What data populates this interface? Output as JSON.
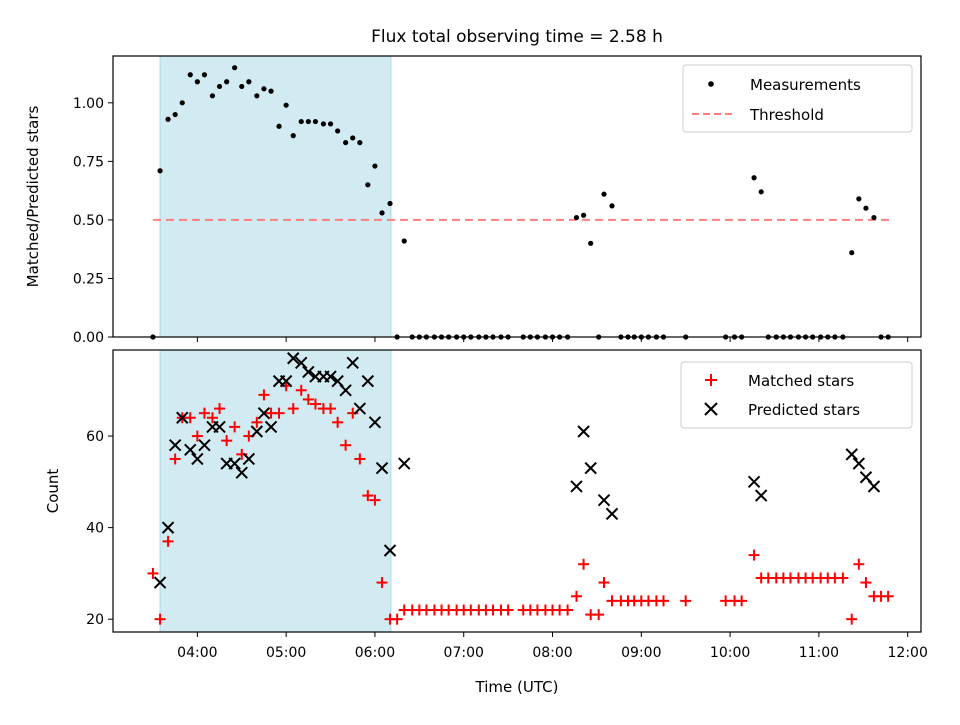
{
  "chart_data": {
    "title": "Flux total observing time = 2.58 h",
    "xlabel": "Time (UTC)",
    "xlim_hours": [
      3.05,
      12.15
    ],
    "x_tick_labels": [
      "04:00",
      "05:00",
      "06:00",
      "07:00",
      "08:00",
      "09:00",
      "10:00",
      "11:00",
      "12:00"
    ],
    "shaded_span_hours": [
      3.58,
      6.18
    ],
    "colors": {
      "span": "#add8e6",
      "measurements": "#000000",
      "threshold": "#ff7f7f",
      "matched": "#ff0000",
      "predicted": "#000000"
    },
    "panels": [
      {
        "type": "scatter",
        "ylabel": "Matched/Predicted stars",
        "ylim": [
          0,
          1.2
        ],
        "y_ticks": [
          0,
          0.25,
          0.5,
          0.75,
          1.0
        ],
        "y_tick_labels": [
          "0.00",
          "0.25",
          "0.50",
          "0.75",
          "1.00"
        ],
        "legend_position": "top-right",
        "legend": [
          "Measurements",
          "Threshold"
        ],
        "threshold": {
          "value": 0.5,
          "x_range": [
            3.5,
            11.8
          ]
        },
        "series": [
          {
            "name": "Measurements",
            "points": [
              [
                3.5,
                0.0
              ],
              [
                3.58,
                0.71
              ],
              [
                3.67,
                0.93
              ],
              [
                3.75,
                0.95
              ],
              [
                3.83,
                1.0
              ],
              [
                3.92,
                1.12
              ],
              [
                4.0,
                1.09
              ],
              [
                4.08,
                1.12
              ],
              [
                4.17,
                1.03
              ],
              [
                4.25,
                1.07
              ],
              [
                4.33,
                1.09
              ],
              [
                4.42,
                1.15
              ],
              [
                4.5,
                1.07
              ],
              [
                4.58,
                1.09
              ],
              [
                4.67,
                1.03
              ],
              [
                4.75,
                1.06
              ],
              [
                4.83,
                1.05
              ],
              [
                4.92,
                0.9
              ],
              [
                5.0,
                0.99
              ],
              [
                5.08,
                0.86
              ],
              [
                5.17,
                0.92
              ],
              [
                5.25,
                0.92
              ],
              [
                5.33,
                0.92
              ],
              [
                5.42,
                0.91
              ],
              [
                5.5,
                0.91
              ],
              [
                5.58,
                0.88
              ],
              [
                5.67,
                0.83
              ],
              [
                5.75,
                0.85
              ],
              [
                5.83,
                0.83
              ],
              [
                5.92,
                0.65
              ],
              [
                6.0,
                0.73
              ],
              [
                6.08,
                0.53
              ],
              [
                6.17,
                0.57
              ],
              [
                6.25,
                0.0
              ],
              [
                6.33,
                0.41
              ],
              [
                6.42,
                0.0
              ],
              [
                6.5,
                0.0
              ],
              [
                6.58,
                0.0
              ],
              [
                6.67,
                0.0
              ],
              [
                6.75,
                0.0
              ],
              [
                6.83,
                0.0
              ],
              [
                6.92,
                0.0
              ],
              [
                7.0,
                0.0
              ],
              [
                7.08,
                0.0
              ],
              [
                7.17,
                0.0
              ],
              [
                7.25,
                0.0
              ],
              [
                7.33,
                0.0
              ],
              [
                7.42,
                0.0
              ],
              [
                7.5,
                0.0
              ],
              [
                7.67,
                0.0
              ],
              [
                7.75,
                0.0
              ],
              [
                7.83,
                0.0
              ],
              [
                7.92,
                0.0
              ],
              [
                8.0,
                0.0
              ],
              [
                8.08,
                0.0
              ],
              [
                8.17,
                0.0
              ],
              [
                8.27,
                0.51
              ],
              [
                8.35,
                0.52
              ],
              [
                8.43,
                0.4
              ],
              [
                8.52,
                0.0
              ],
              [
                8.58,
                0.61
              ],
              [
                8.67,
                0.56
              ],
              [
                8.77,
                0.0
              ],
              [
                8.85,
                0.0
              ],
              [
                8.92,
                0.0
              ],
              [
                9.0,
                0.0
              ],
              [
                9.08,
                0.0
              ],
              [
                9.17,
                0.0
              ],
              [
                9.25,
                0.0
              ],
              [
                9.5,
                0.0
              ],
              [
                9.95,
                0.0
              ],
              [
                10.05,
                0.0
              ],
              [
                10.13,
                0.0
              ],
              [
                10.27,
                0.68
              ],
              [
                10.35,
                0.62
              ],
              [
                10.43,
                0.0
              ],
              [
                10.52,
                0.0
              ],
              [
                10.6,
                0.0
              ],
              [
                10.68,
                0.0
              ],
              [
                10.77,
                0.0
              ],
              [
                10.85,
                0.0
              ],
              [
                10.93,
                0.0
              ],
              [
                11.02,
                0.0
              ],
              [
                11.1,
                0.0
              ],
              [
                11.18,
                0.0
              ],
              [
                11.27,
                0.0
              ],
              [
                11.37,
                0.36
              ],
              [
                11.45,
                0.59
              ],
              [
                11.53,
                0.55
              ],
              [
                11.62,
                0.51
              ],
              [
                11.7,
                0.0
              ],
              [
                11.78,
                0.0
              ]
            ]
          }
        ]
      },
      {
        "type": "scatter",
        "ylabel": "Count",
        "ylim": [
          17.2,
          78.8
        ],
        "y_ticks": [
          20,
          40,
          60
        ],
        "y_tick_labels": [
          "20",
          "40",
          "60"
        ],
        "legend_position": "top-right",
        "legend": [
          "Matched stars",
          "Predicted stars"
        ],
        "series": [
          {
            "name": "Matched stars",
            "points": [
              [
                3.5,
                30
              ],
              [
                3.58,
                20
              ],
              [
                3.67,
                37
              ],
              [
                3.75,
                55
              ],
              [
                3.83,
                64
              ],
              [
                3.92,
                64
              ],
              [
                4.0,
                60
              ],
              [
                4.08,
                65
              ],
              [
                4.17,
                64
              ],
              [
                4.25,
                66
              ],
              [
                4.33,
                59
              ],
              [
                4.42,
                62
              ],
              [
                4.5,
                56
              ],
              [
                4.58,
                60
              ],
              [
                4.67,
                63
              ],
              [
                4.75,
                69
              ],
              [
                4.83,
                65
              ],
              [
                4.92,
                65
              ],
              [
                5.0,
                71
              ],
              [
                5.08,
                66
              ],
              [
                5.17,
                70
              ],
              [
                5.25,
                68
              ],
              [
                5.33,
                67
              ],
              [
                5.42,
                66
              ],
              [
                5.5,
                66
              ],
              [
                5.58,
                63
              ],
              [
                5.67,
                58
              ],
              [
                5.75,
                65
              ],
              [
                5.83,
                55
              ],
              [
                5.92,
                47
              ],
              [
                6.0,
                46
              ],
              [
                6.08,
                28
              ],
              [
                6.17,
                20
              ],
              [
                6.25,
                20
              ],
              [
                6.33,
                22
              ],
              [
                6.42,
                22
              ],
              [
                6.5,
                22
              ],
              [
                6.58,
                22
              ],
              [
                6.67,
                22
              ],
              [
                6.75,
                22
              ],
              [
                6.83,
                22
              ],
              [
                6.92,
                22
              ],
              [
                7.0,
                22
              ],
              [
                7.08,
                22
              ],
              [
                7.17,
                22
              ],
              [
                7.25,
                22
              ],
              [
                7.33,
                22
              ],
              [
                7.42,
                22
              ],
              [
                7.5,
                22
              ],
              [
                7.67,
                22
              ],
              [
                7.75,
                22
              ],
              [
                7.83,
                22
              ],
              [
                7.92,
                22
              ],
              [
                8.0,
                22
              ],
              [
                8.08,
                22
              ],
              [
                8.17,
                22
              ],
              [
                8.27,
                25
              ],
              [
                8.35,
                32
              ],
              [
                8.43,
                21
              ],
              [
                8.52,
                21
              ],
              [
                8.58,
                28
              ],
              [
                8.67,
                24
              ],
              [
                8.77,
                24
              ],
              [
                8.85,
                24
              ],
              [
                8.92,
                24
              ],
              [
                9.0,
                24
              ],
              [
                9.08,
                24
              ],
              [
                9.17,
                24
              ],
              [
                9.25,
                24
              ],
              [
                9.5,
                24
              ],
              [
                9.95,
                24
              ],
              [
                10.05,
                24
              ],
              [
                10.13,
                24
              ],
              [
                10.27,
                34
              ],
              [
                10.35,
                29
              ],
              [
                10.43,
                29
              ],
              [
                10.52,
                29
              ],
              [
                10.6,
                29
              ],
              [
                10.68,
                29
              ],
              [
                10.77,
                29
              ],
              [
                10.85,
                29
              ],
              [
                10.93,
                29
              ],
              [
                11.02,
                29
              ],
              [
                11.1,
                29
              ],
              [
                11.18,
                29
              ],
              [
                11.27,
                29
              ],
              [
                11.37,
                20
              ],
              [
                11.45,
                32
              ],
              [
                11.53,
                28
              ],
              [
                11.62,
                25
              ],
              [
                11.7,
                25
              ],
              [
                11.78,
                25
              ]
            ]
          },
          {
            "name": "Predicted stars",
            "points": [
              [
                3.58,
                28
              ],
              [
                3.67,
                40
              ],
              [
                3.75,
                58
              ],
              [
                3.83,
                64
              ],
              [
                3.92,
                57
              ],
              [
                4.0,
                55
              ],
              [
                4.08,
                58
              ],
              [
                4.17,
                62
              ],
              [
                4.25,
                62
              ],
              [
                4.33,
                54
              ],
              [
                4.42,
                54
              ],
              [
                4.5,
                52
              ],
              [
                4.58,
                55
              ],
              [
                4.67,
                61
              ],
              [
                4.75,
                65
              ],
              [
                4.83,
                62
              ],
              [
                4.92,
                72
              ],
              [
                5.0,
                72
              ],
              [
                5.08,
                77
              ],
              [
                5.17,
                76
              ],
              [
                5.25,
                74
              ],
              [
                5.33,
                73
              ],
              [
                5.42,
                73
              ],
              [
                5.5,
                73
              ],
              [
                5.58,
                72
              ],
              [
                5.67,
                70
              ],
              [
                5.75,
                76
              ],
              [
                5.83,
                66
              ],
              [
                5.92,
                72
              ],
              [
                6.0,
                63
              ],
              [
                6.08,
                53
              ],
              [
                6.17,
                35
              ],
              [
                6.33,
                54
              ],
              [
                8.27,
                49
              ],
              [
                8.35,
                61
              ],
              [
                8.43,
                53
              ],
              [
                8.58,
                46
              ],
              [
                8.67,
                43
              ],
              [
                10.27,
                50
              ],
              [
                10.35,
                47
              ],
              [
                11.37,
                56
              ],
              [
                11.45,
                54
              ],
              [
                11.53,
                51
              ],
              [
                11.62,
                49
              ]
            ]
          }
        ]
      }
    ]
  }
}
